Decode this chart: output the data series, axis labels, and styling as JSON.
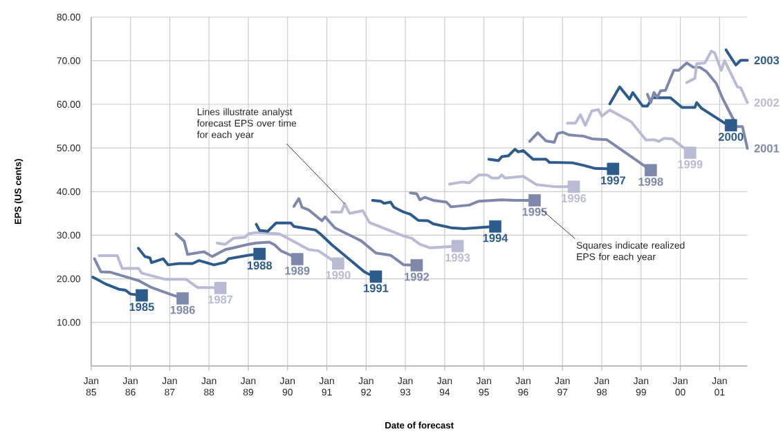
{
  "chart_data": {
    "type": "line",
    "xlabel": "Date of forecast",
    "ylabel": "EPS (US cents)",
    "xlim": [
      "1985-01-01",
      "2001-09-16"
    ],
    "xticks": [
      {
        "value": "1985-01-01",
        "label": "Jan 85"
      },
      {
        "value": "1986-01-01",
        "label": "Jan 86"
      },
      {
        "value": "1987-01-01",
        "label": "Jan 87"
      },
      {
        "value": "1988-01-01",
        "label": "Jan 88"
      },
      {
        "value": "1989-01-01",
        "label": "Jan 89"
      },
      {
        "value": "1990-01-01",
        "label": "Jan 90"
      },
      {
        "value": "1991-01-01",
        "label": "Jan 91"
      },
      {
        "value": "1992-01-01",
        "label": "Jan 92"
      },
      {
        "value": "1993-01-01",
        "label": "Jan 93"
      },
      {
        "value": "1994-01-01",
        "label": "Jan 94"
      },
      {
        "value": "1995-01-01",
        "label": "Jan 95"
      },
      {
        "value": "1996-01-01",
        "label": "Jan 96"
      },
      {
        "value": "1997-01-01",
        "label": "Jan 97"
      },
      {
        "value": "1998-01-01",
        "label": "Jan 98"
      },
      {
        "value": "1999-01-01",
        "label": "Jan 99"
      },
      {
        "value": "2000-01-01",
        "label": "Jan 00"
      },
      {
        "value": "2001-01-01",
        "label": "Jan 01"
      }
    ],
    "ylim": [
      0,
      80
    ],
    "yticks": [
      {
        "value": 10,
        "label": "10.00"
      },
      {
        "value": 20,
        "label": "20.00"
      },
      {
        "value": 30,
        "label": "30.00"
      },
      {
        "value": 40,
        "label": "40.00"
      },
      {
        "value": 50,
        "label": "50.00"
      },
      {
        "value": 60,
        "label": "60.00"
      },
      {
        "value": 70,
        "label": "70.00"
      },
      {
        "value": 80,
        "label": "80.00"
      }
    ],
    "grid": true,
    "marker": "none",
    "annotations": [
      {
        "text": "Lines illustrate analyst forecast EPS over time for each year",
        "x": "1991-06-16",
        "y": 37.2
      },
      {
        "text": "Squares indicate realized EPS for each year",
        "x": "1996-06-01",
        "y": 36.5
      }
    ],
    "series": [
      {
        "name": "1985",
        "color": "#2c5b8c",
        "x": [
          "1985-01-16",
          "1985-05-16",
          "1985-09-16",
          "1985-11-16",
          "1986-01-01",
          "1986-04-16"
        ],
        "values": [
          20.4,
          18.8,
          17.6,
          17.4,
          16.5,
          16.2
        ]
      },
      {
        "name": "1986",
        "color": "#7e88ab",
        "x": [
          "1985-02-01",
          "1985-04-01",
          "1985-07-01",
          "1986-03-16",
          "1986-07-16",
          "1987-01-01",
          "1987-05-01"
        ],
        "values": [
          24.6,
          21.6,
          21.5,
          19.6,
          18.0,
          16.5,
          15.5
        ]
      },
      {
        "name": "1987",
        "color": "#b8bbd3",
        "x": [
          "1985-03-16",
          "1985-09-01",
          "1985-10-16",
          "1986-03-16",
          "1986-04-16",
          "1986-11-16",
          "1987-06-01",
          "1987-09-16",
          "1988-01-16",
          "1988-04-16"
        ],
        "values": [
          25.3,
          25.3,
          22.4,
          22.4,
          21.3,
          19.9,
          19.9,
          18.0,
          18.0,
          17.9
        ]
      },
      {
        "name": "1988",
        "color": "#2c5b8c",
        "x": [
          "1986-03-16",
          "1986-05-16",
          "1986-07-01",
          "1986-07-16",
          "1986-11-01",
          "1986-12-16",
          "1987-04-01",
          "1987-08-01",
          "1987-10-01",
          "1988-02-16",
          "1988-06-01",
          "1988-07-01",
          "1989-01-01",
          "1989-04-16"
        ],
        "values": [
          27.0,
          25.1,
          24.8,
          23.7,
          24.6,
          23.2,
          23.5,
          23.5,
          24.2,
          23.2,
          23.8,
          24.6,
          25.4,
          25.7
        ]
      },
      {
        "name": "1989",
        "color": "#7e88ab",
        "x": [
          "1987-03-01",
          "1987-05-16",
          "1987-06-16",
          "1987-11-16",
          "1988-02-01",
          "1988-06-01",
          "1988-08-16",
          "1989-01-01",
          "1989-03-16",
          "1989-07-16",
          "1989-09-01",
          "1989-11-01",
          "1990-02-01",
          "1990-04-01"
        ],
        "values": [
          30.3,
          28.6,
          25.6,
          26.2,
          25.1,
          26.7,
          27.1,
          27.9,
          28.2,
          28.4,
          27.8,
          26.4,
          25.4,
          24.5
        ]
      },
      {
        "name": "1990",
        "color": "#b8bbd3",
        "x": [
          "1988-03-16",
          "1988-06-01",
          "1988-08-16",
          "1988-12-01",
          "1989-01-01",
          "1989-03-16",
          "1989-10-16",
          "1990-02-01",
          "1990-07-16",
          "1990-10-16",
          "1991-02-01",
          "1991-04-16"
        ],
        "values": [
          28.2,
          27.9,
          29.3,
          29.5,
          30.3,
          30.6,
          30.3,
          28.9,
          26.7,
          26.4,
          24.6,
          23.5
        ]
      },
      {
        "name": "1991",
        "color": "#2c5b8c",
        "x": [
          "1989-03-16",
          "1989-04-16",
          "1989-07-01",
          "1989-09-16",
          "1990-02-01",
          "1990-03-01",
          "1990-05-16",
          "1990-09-16",
          "1990-11-01",
          "1991-02-16",
          "1991-12-16",
          "1992-02-01",
          "1992-04-01"
        ],
        "values": [
          32.5,
          31.1,
          30.9,
          32.8,
          32.8,
          32.0,
          31.7,
          31.2,
          30.3,
          27.8,
          21.6,
          21.0,
          20.5
        ]
      },
      {
        "name": "1992",
        "color": "#7e88ab",
        "x": [
          "1990-03-01",
          "1990-04-16",
          "1990-05-16",
          "1990-07-16",
          "1990-11-16",
          "1990-12-16",
          "1991-03-16",
          "1991-11-16",
          "1992-04-01",
          "1992-08-16",
          "1992-12-16",
          "1993-04-16"
        ],
        "values": [
          36.6,
          38.4,
          36.4,
          35.8,
          33.3,
          34.2,
          31.7,
          28.7,
          25.9,
          25.4,
          23.2,
          23.1
        ]
      },
      {
        "name": "1993",
        "color": "#b8bbd3",
        "x": [
          "1991-02-16",
          "1991-05-16",
          "1991-06-16",
          "1991-08-01",
          "1991-12-01",
          "1992-02-01",
          "1992-12-16",
          "1993-03-01",
          "1993-05-16",
          "1993-08-16",
          "1994-05-01"
        ],
        "values": [
          35.3,
          35.3,
          37.2,
          35.0,
          35.6,
          32.9,
          29.8,
          29.3,
          27.9,
          27.1,
          27.5
        ]
      },
      {
        "name": "1994",
        "color": "#2c5b8c",
        "x": [
          "1992-03-01",
          "1992-05-16",
          "1992-06-16",
          "1992-08-16",
          "1992-09-16",
          "1992-12-16",
          "1993-02-16",
          "1993-05-01",
          "1993-08-01",
          "1993-09-16",
          "1994-03-01",
          "1994-07-01",
          "1995-04-16"
        ],
        "values": [
          38.0,
          37.8,
          37.3,
          37.6,
          36.4,
          35.3,
          34.8,
          33.4,
          33.3,
          32.6,
          31.7,
          31.5,
          32.0
        ]
      },
      {
        "name": "1995",
        "color": "#7e88ab",
        "x": [
          "1993-02-16",
          "1993-04-16",
          "1993-05-16",
          "1993-07-01",
          "1993-09-16",
          "1994-01-16",
          "1994-03-01",
          "1994-08-16",
          "1994-11-16",
          "1995-06-16",
          "1995-10-16",
          "1996-04-16"
        ],
        "values": [
          39.7,
          39.5,
          38.1,
          38.7,
          38.0,
          37.6,
          36.5,
          36.9,
          37.8,
          38.1,
          38.0,
          38.0
        ]
      },
      {
        "name": "1996",
        "color": "#b8bbd3",
        "x": [
          "1994-02-16",
          "1994-06-16",
          "1994-08-16",
          "1994-11-16",
          "1995-02-01",
          "1995-03-16",
          "1995-05-16",
          "1995-06-16",
          "1995-07-16",
          "1996-01-01",
          "1996-05-01",
          "1996-11-01",
          "1997-04-16"
        ],
        "values": [
          41.7,
          42.2,
          42.0,
          43.8,
          43.8,
          43.1,
          43.1,
          43.8,
          43.1,
          43.5,
          41.6,
          41.1,
          41.1
        ]
      },
      {
        "name": "1997",
        "color": "#2c5b8c",
        "x": [
          "1995-02-16",
          "1995-05-16",
          "1995-06-16",
          "1995-08-16",
          "1995-10-16",
          "1995-11-16",
          "1996-01-01",
          "1996-04-01",
          "1996-08-01",
          "1996-09-01",
          "1997-04-01",
          "1997-07-16",
          "1997-11-01",
          "1998-04-16"
        ],
        "values": [
          47.4,
          47.1,
          48.0,
          48.2,
          49.7,
          49.1,
          49.4,
          47.4,
          47.4,
          46.7,
          46.6,
          46.0,
          45.3,
          45.2
        ]
      },
      {
        "name": "1998",
        "color": "#7e88ab",
        "x": [
          "1996-03-01",
          "1996-05-16",
          "1996-08-01",
          "1996-10-16",
          "1996-11-16",
          "1997-01-01",
          "1997-03-01",
          "1997-07-16",
          "1997-10-01",
          "1998-02-16",
          "1999-04-01"
        ],
        "values": [
          51.5,
          53.5,
          51.6,
          51.3,
          53.3,
          53.6,
          53.0,
          52.7,
          52.1,
          51.9,
          44.9
        ]
      },
      {
        "name": "1999",
        "color": "#b8bbd3",
        "x": [
          "1997-02-16",
          "1997-05-01",
          "1997-06-16",
          "1997-08-01",
          "1997-10-01",
          "1997-12-01",
          "1998-01-01",
          "1998-03-16",
          "1998-10-01",
          "1999-02-16",
          "1999-05-01",
          "1999-06-16",
          "1999-08-01",
          "1999-10-16",
          "2000-04-01"
        ],
        "values": [
          55.7,
          55.7,
          57.6,
          55.2,
          58.5,
          58.8,
          57.3,
          58.7,
          56.0,
          51.8,
          51.9,
          51.5,
          52.2,
          52.1,
          48.9
        ]
      },
      {
        "name": "2000",
        "color": "#2c5b8c",
        "x": [
          "1998-03-16",
          "1998-06-16",
          "1998-09-16",
          "1998-10-16",
          "1999-01-16",
          "1999-03-01",
          "1999-04-16",
          "1999-10-01",
          "2000-01-16",
          "2000-05-16",
          "2000-06-01",
          "2000-07-16",
          "2001-02-16",
          "2001-04-16"
        ],
        "values": [
          60.1,
          64.0,
          61.2,
          62.7,
          59.6,
          59.6,
          61.5,
          61.5,
          59.3,
          59.3,
          60.4,
          59.1,
          55.7,
          55.2
        ]
      },
      {
        "name": "2001",
        "color": "#7e88ab",
        "x": [
          "1999-03-01",
          "1999-04-01",
          "1999-05-01",
          "1999-06-01",
          "1999-07-01",
          "1999-08-16",
          "1999-11-01",
          "1999-12-16",
          "2000-03-01",
          "2000-05-01",
          "2000-07-01",
          "2000-09-01",
          "2000-12-01",
          "2001-02-01",
          "2001-05-16",
          "2001-06-01",
          "2001-08-01",
          "2001-09-16"
        ],
        "values": [
          62.3,
          60.4,
          62.7,
          61.6,
          63.1,
          63.2,
          67.8,
          67.8,
          69.5,
          68.5,
          68.5,
          67.5,
          64.8,
          61.2,
          56.2,
          54.9,
          54.9,
          49.9
        ]
      },
      {
        "name": "2002",
        "color": "#b8bbd3",
        "x": [
          "2000-03-01",
          "2000-05-16",
          "2000-06-01",
          "2000-08-16",
          "2000-10-16",
          "2000-11-16",
          "2001-01-16",
          "2001-02-16",
          "2001-06-16",
          "2001-07-16",
          "2001-09-16"
        ],
        "values": [
          65.0,
          66.0,
          69.3,
          69.5,
          72.2,
          71.8,
          67.8,
          70.0,
          64.0,
          63.8,
          60.4
        ]
      },
      {
        "name": "2003",
        "color": "#2c5b8c",
        "x": [
          "2001-03-01",
          "2001-06-01",
          "2001-07-16",
          "2001-09-16"
        ],
        "values": [
          72.5,
          69.0,
          70.1,
          70.1
        ]
      },
      {
        "type": "scatter",
        "marker": "square",
        "x": [
          "1986-04-16",
          "1987-05-01",
          "1988-04-16",
          "1989-04-16",
          "1990-04-01",
          "1991-04-16",
          "1992-04-01",
          "1993-04-16",
          "1994-05-01",
          "1995-04-16",
          "1996-04-16",
          "1997-04-16",
          "1998-04-16",
          "1999-04-01",
          "2000-04-01",
          "2001-04-16"
        ],
        "values": [
          16.2,
          15.5,
          17.9,
          25.7,
          24.5,
          23.5,
          20.5,
          23.1,
          27.5,
          32.0,
          38.0,
          41.1,
          45.2,
          44.9,
          48.9,
          55.2
        ],
        "colors": [
          "#2c5b8c",
          "#7e88ab",
          "#b8bbd3",
          "#2c5b8c",
          "#7e88ab",
          "#b8bbd3",
          "#2c5b8c",
          "#7e88ab",
          "#b8bbd3",
          "#2c5b8c",
          "#7e88ab",
          "#b8bbd3",
          "#2c5b8c",
          "#7e88ab",
          "#b8bbd3",
          "#2c5b8c"
        ]
      }
    ]
  }
}
